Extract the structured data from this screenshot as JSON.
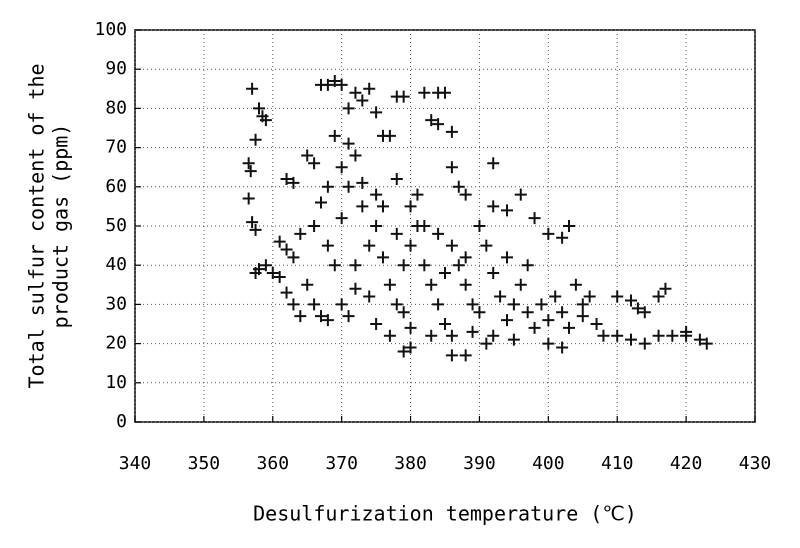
{
  "chart_data": {
    "type": "scatter",
    "y_label_lines": [
      "Total sulfur content of the",
      "product gas (ppm)"
    ],
    "x_label": "Desulfurization temperature (℃)",
    "xlim": [
      340,
      430
    ],
    "xticks": [
      340,
      350,
      360,
      370,
      380,
      390,
      400,
      410,
      420,
      430
    ],
    "ylim": [
      0,
      100
    ],
    "yticks": [
      0,
      10,
      20,
      30,
      40,
      50,
      60,
      70,
      80,
      90,
      100
    ],
    "grid": true,
    "color": "#111111",
    "marker": "+",
    "x": [
      357,
      356.5,
      356.8,
      357.5,
      356.5,
      357,
      357.5,
      358,
      358.5,
      359,
      357.5,
      358,
      359,
      360,
      361,
      361,
      362,
      363,
      362,
      363,
      364,
      365,
      366,
      367,
      368,
      364,
      366,
      367,
      368,
      362,
      363,
      365,
      366,
      367,
      368,
      369,
      370,
      371,
      372,
      373,
      374,
      375,
      376,
      377,
      369,
      371,
      370,
      372,
      373,
      378,
      379,
      382,
      384,
      385,
      383,
      384,
      386,
      386,
      372,
      374,
      375,
      376,
      377,
      378,
      379,
      380,
      381,
      382,
      383,
      384,
      385,
      386,
      387,
      388,
      389,
      390,
      391,
      392,
      393,
      394,
      395,
      396,
      397,
      398,
      399,
      400,
      401,
      402,
      403,
      375,
      377,
      380,
      383,
      386,
      389,
      392,
      370,
      371,
      373,
      375,
      378,
      380,
      382,
      384,
      378,
      376,
      372,
      374,
      369,
      368,
      370,
      371,
      381,
      379,
      385,
      388,
      394,
      397,
      405,
      406,
      404,
      387,
      388,
      390,
      392,
      394,
      396,
      398,
      400,
      402,
      403,
      392,
      405,
      407,
      408,
      410,
      412,
      414,
      416,
      418,
      420,
      422,
      423,
      410,
      412,
      414,
      416,
      417,
      413,
      420,
      379,
      380,
      386,
      388,
      391,
      395,
      400,
      402
    ],
    "values": [
      85,
      66,
      64,
      72,
      57,
      51,
      49,
      80,
      78,
      77,
      38,
      39,
      40,
      38,
      37,
      46,
      44,
      42,
      33,
      30,
      27,
      35,
      30,
      27,
      26,
      48,
      50,
      56,
      60,
      62,
      61,
      68,
      66,
      86,
      86,
      87,
      86,
      80,
      84,
      82,
      85,
      79,
      73,
      73,
      73,
      71,
      65,
      68,
      61,
      83,
      83,
      84,
      84,
      84,
      77,
      76,
      74,
      65,
      40,
      45,
      50,
      55,
      35,
      30,
      28,
      45,
      50,
      40,
      35,
      30,
      25,
      45,
      40,
      35,
      30,
      28,
      45,
      38,
      32,
      26,
      30,
      35,
      28,
      24,
      30,
      26,
      32,
      28,
      24,
      25,
      22,
      24,
      22,
      22,
      23,
      22,
      30,
      27,
      55,
      58,
      62,
      55,
      50,
      48,
      48,
      42,
      34,
      32,
      40,
      45,
      52,
      60,
      58,
      40,
      38,
      42,
      42,
      40,
      30,
      32,
      35,
      60,
      58,
      50,
      55,
      54,
      58,
      52,
      48,
      47,
      50,
      66,
      27,
      25,
      22,
      22,
      21,
      20,
      22,
      22,
      22,
      21,
      20,
      32,
      31,
      28,
      32,
      34,
      29,
      23,
      18,
      19,
      17,
      17,
      20,
      21,
      20,
      19
    ]
  }
}
